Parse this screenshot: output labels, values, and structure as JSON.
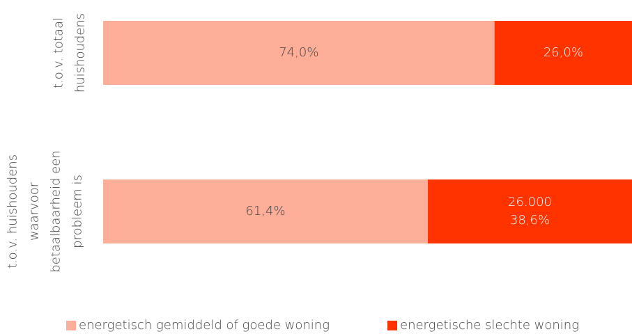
{
  "chart_data": {
    "type": "stacked-barh",
    "categories": [
      [
        "t.o.v. totaal",
        "huishoudens"
      ],
      [
        "t.o.v. huishoudens",
        "waarvoor",
        "betaalbaarheid een",
        "probleem is"
      ]
    ],
    "series": [
      {
        "name": "energetisch gemiddeld of goede woning",
        "color": "#fcae98",
        "values": [
          74.0,
          61.4
        ],
        "value_labels": [
          "74,0%",
          "61,4%"
        ],
        "label_color": "#444444"
      },
      {
        "name": "energetische slechte woning",
        "color": "#ff3300",
        "values": [
          26.0,
          38.6
        ],
        "value_labels": [
          "26,0%",
          "38,6%"
        ],
        "label_color": "#ffffff"
      }
    ],
    "annotation": "26.000",
    "xlim": [
      0,
      100
    ],
    "legend": "bottom"
  }
}
